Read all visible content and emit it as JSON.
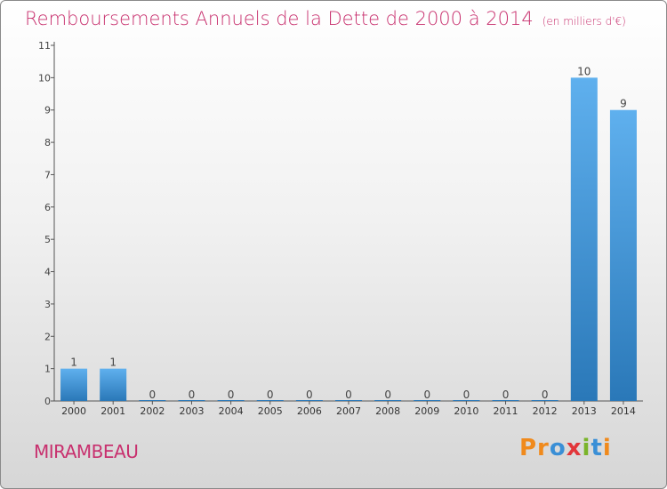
{
  "title": {
    "main": "Remboursements Annuels de la Dette de 2000 à 2014",
    "unit": "(en milliers d'€)"
  },
  "commune": "MIRAMBEAU",
  "logo": {
    "text": "Proxiti"
  },
  "colors": {
    "title": "#c8306e",
    "bar_top": "#5fb0ee",
    "bar_bottom": "#2a78b8",
    "axis": "#555555"
  },
  "chart_data": {
    "type": "bar",
    "title": "Remboursements Annuels de la Dette de 2000 à 2014",
    "ylabel": "",
    "xlabel": "",
    "categories": [
      "2000",
      "2001",
      "2002",
      "2003",
      "2004",
      "2005",
      "2006",
      "2007",
      "2008",
      "2009",
      "2010",
      "2011",
      "2012",
      "2013",
      "2014"
    ],
    "values": [
      1,
      1,
      0,
      0,
      0,
      0,
      0,
      0,
      0,
      0,
      0,
      0,
      0,
      10,
      9
    ],
    "ylim": [
      0,
      11
    ],
    "yticks": [
      0,
      1,
      2,
      3,
      4,
      5,
      6,
      7,
      8,
      9,
      10,
      11
    ],
    "grid": false,
    "data_labels": true
  }
}
